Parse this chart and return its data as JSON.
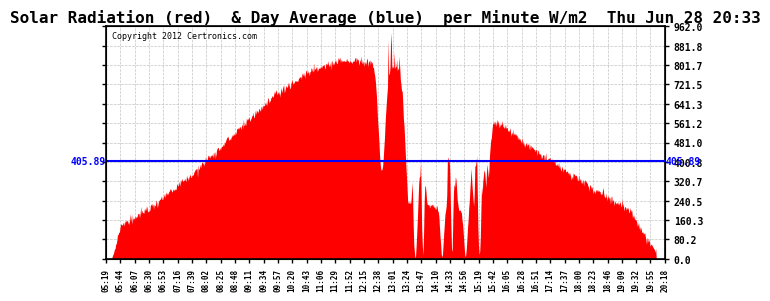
{
  "title": "Solar Radiation (red)  & Day Average (blue)  per Minute W/m2  Thu Jun 28 20:33",
  "copyright_text": "Copyright 2012 Certronics.com",
  "y_min": 0.0,
  "y_max": 962.0,
  "y_ticks": [
    0.0,
    80.2,
    160.3,
    240.5,
    320.7,
    400.8,
    481.0,
    561.2,
    641.3,
    721.5,
    801.7,
    881.8,
    962.0
  ],
  "avg_value": 405.89,
  "avg_label": "405.89",
  "fill_color": "#ff0000",
  "line_color": "#0000ff",
  "background_color": "#ffffff",
  "grid_color": "#aaaaaa",
  "title_fontsize": 11.5,
  "x_tick_labels": [
    "05:19",
    "05:44",
    "06:07",
    "06:30",
    "06:53",
    "07:16",
    "07:39",
    "08:02",
    "08:25",
    "08:48",
    "09:11",
    "09:34",
    "09:57",
    "10:20",
    "10:43",
    "11:06",
    "11:29",
    "11:52",
    "12:15",
    "12:38",
    "13:01",
    "13:24",
    "13:47",
    "14:10",
    "14:33",
    "14:56",
    "15:19",
    "15:42",
    "16:05",
    "16:28",
    "16:51",
    "17:14",
    "17:37",
    "18:00",
    "18:23",
    "18:46",
    "19:09",
    "19:32",
    "19:55",
    "20:18"
  ],
  "n_points": 916,
  "curve_seed": 99
}
